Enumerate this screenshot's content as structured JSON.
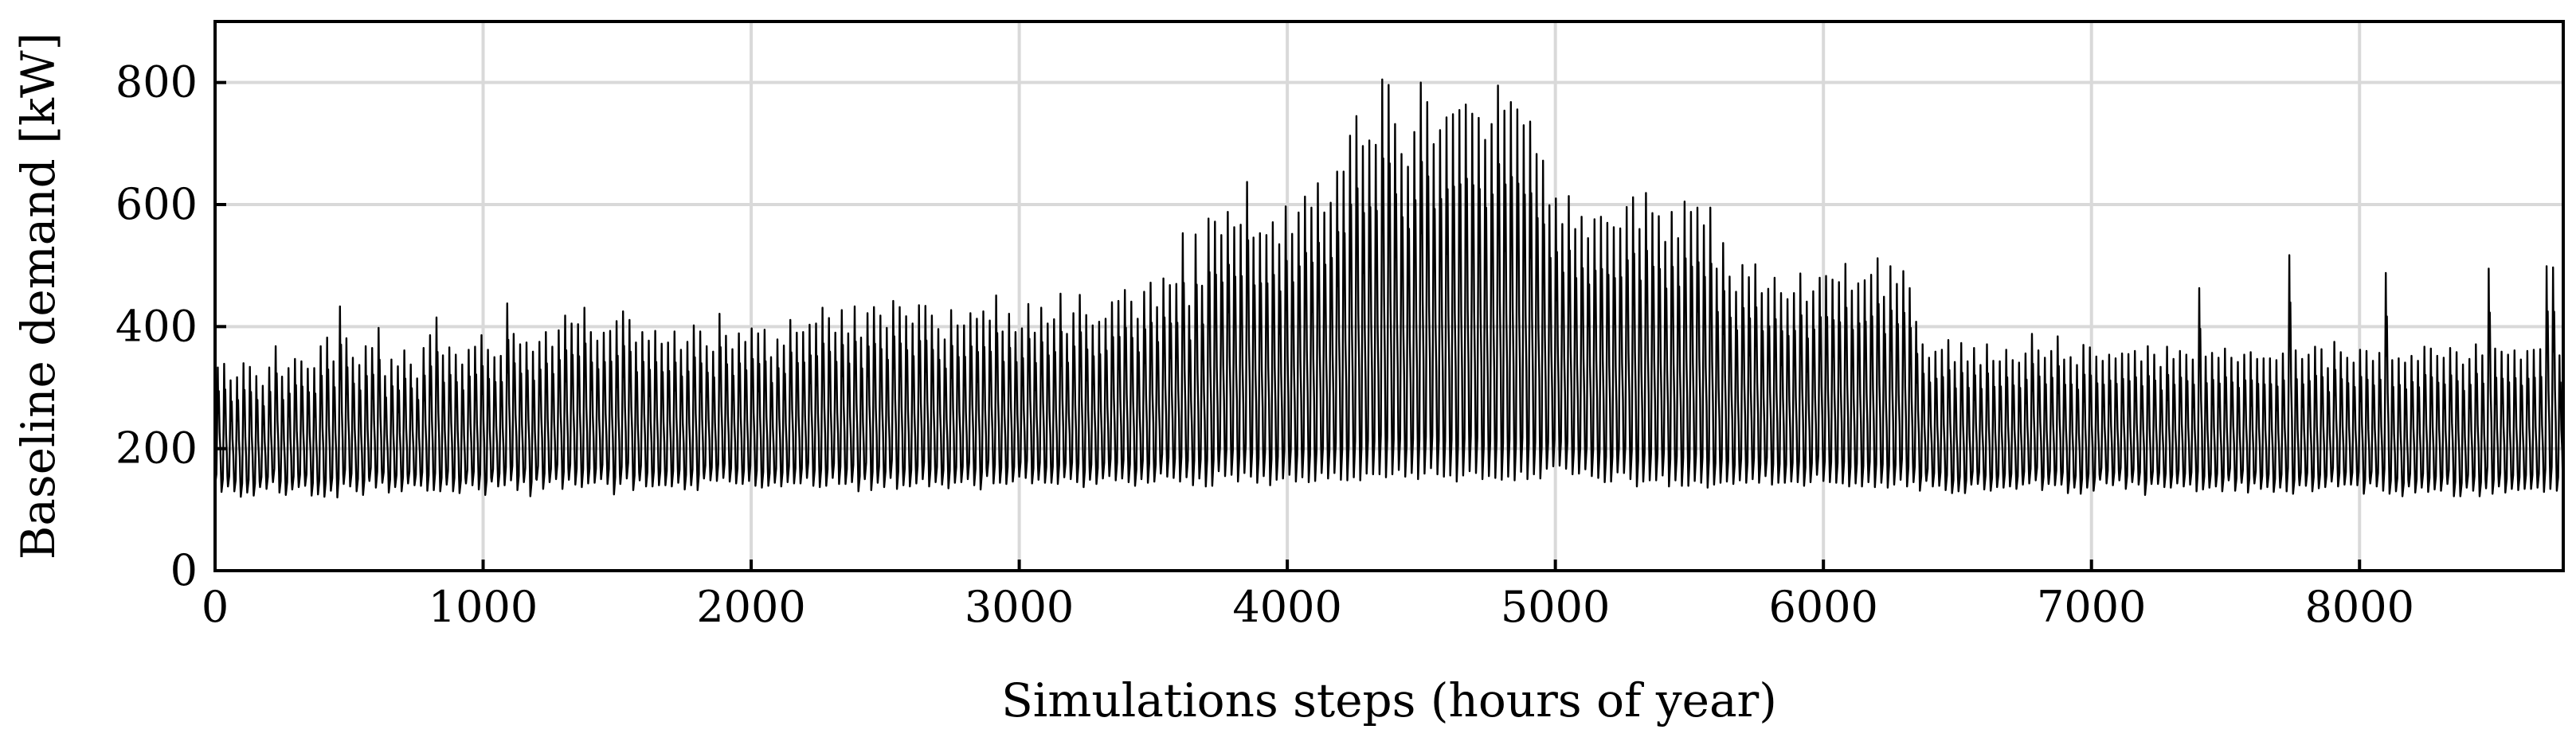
{
  "chart_data": {
    "type": "line",
    "xlabel": "Simulations steps (hours of year)",
    "ylabel": "Baseline demand [kW]",
    "xlim": [
      0,
      8760
    ],
    "ylim": [
      0,
      900
    ],
    "xticks": [
      0,
      1000,
      2000,
      3000,
      4000,
      5000,
      6000,
      7000,
      8000
    ],
    "yticks": [
      0,
      200,
      400,
      600,
      800
    ],
    "grid": true,
    "legend": "none",
    "series": [
      {
        "color": "#000000",
        "hour_step": 24,
        "daily_min": [
          139,
          129,
          138,
          130,
          121,
          128,
          123,
          137,
          134,
          145,
          128,
          124,
          133,
          137,
          139,
          123,
          125,
          121,
          131,
          120,
          142,
          138,
          130,
          124,
          147,
          136,
          144,
          128,
          137,
          130,
          143,
          140,
          139,
          131,
          132,
          130,
          141,
          130,
          127,
          143,
          140,
          133,
          124,
          146,
          138,
          140,
          148,
          132,
          145,
          122,
          149,
          134,
          145,
          150,
          134,
          149,
          141,
          137,
          143,
          144,
          150,
          142,
          125,
          142,
          151,
          132,
          148,
          138,
          138,
          140,
          140,
          138,
          144,
          133,
          140,
          132,
          151,
          148,
          147,
          152,
          146,
          143,
          142,
          147,
          139,
          136,
          139,
          144,
          138,
          145,
          143,
          143,
          152,
          139,
          137,
          139,
          152,
          142,
          142,
          145,
          130,
          150,
          132,
          144,
          137,
          152,
          134,
          140,
          138,
          143,
          150,
          138,
          145,
          141,
          135,
          144,
          145,
          150,
          140,
          133,
          155,
          143,
          144,
          142,
          146,
          154,
          152,
          143,
          149,
          144,
          144,
          142,
          153,
          150,
          145,
          137,
          149,
          142,
          151,
          155,
          148,
          151,
          145,
          139,
          150,
          144,
          146,
          159,
          154,
          152,
          146,
          153,
          140,
          151,
          138,
          139,
          163,
          155,
          157,
          146,
          160,
          154,
          144,
          155,
          140,
          149,
          151,
          157,
          146,
          153,
          145,
          147,
          160,
          151,
          160,
          149,
          148,
          153,
          148,
          159,
          158,
          158,
          153,
          158,
          165,
          154,
          160,
          150,
          159,
          168,
          158,
          154,
          156,
          146,
          156,
          163,
          160,
          150,
          155,
          152,
          149,
          154,
          148,
          162,
          150,
          158,
          151,
          167,
          171,
          172,
          167,
          158,
          159,
          166,
          155,
          152,
          145,
          146,
          161,
          160,
          150,
          138,
          146,
          148,
          148,
          156,
          138,
          148,
          139,
          139,
          147,
          144,
          136,
          141,
          144,
          146,
          142,
          148,
          144,
          150,
          144,
          155,
          141,
          144,
          144,
          146,
          145,
          139,
          145,
          157,
          147,
          145,
          144,
          143,
          138,
          143,
          138,
          145,
          137,
          144,
          136,
          141,
          149,
          138,
          145,
          131,
          147,
          138,
          139,
          132,
          127,
          130,
          127,
          141,
          142,
          133,
          131,
          137,
          136,
          138,
          134,
          141,
          143,
          148,
          132,
          142,
          140,
          141,
          127,
          136,
          126,
          136,
          131,
          149,
          143,
          140,
          148,
          134,
          145,
          141,
          124,
          142,
          142,
          137,
          136,
          143,
          138,
          141,
          130,
          133,
          136,
          138,
          130,
          148,
          131,
          144,
          128,
          143,
          134,
          137,
          129,
          136,
          130,
          126,
          140,
          139,
          130,
          135,
          137,
          146,
          138,
          141,
          141,
          140,
          126,
          143,
          138,
          131,
          126,
          130,
          122,
          138,
          128,
          136,
          129,
          133,
          131,
          142,
          122,
          122,
          136,
          131,
          122,
          135,
          126,
          138,
          128,
          134,
          132,
          134,
          134,
          136,
          129,
          134,
          131,
          120,
          128,
          139,
          127,
          125,
          141,
          126,
          133,
          131,
          125,
          128,
          133,
          138,
          136,
          125,
          138
        ],
        "daily_max": [
          333,
          339,
          312,
          317,
          340,
          334,
          319,
          303,
          333,
          368,
          318,
          332,
          347,
          343,
          331,
          332,
          368,
          382,
          343,
          433,
          381,
          349,
          337,
          368,
          365,
          398,
          319,
          346,
          335,
          361,
          338,
          315,
          365,
          386,
          415,
          353,
          366,
          354,
          338,
          362,
          367,
          386,
          362,
          350,
          352,
          438,
          388,
          371,
          374,
          359,
          375,
          391,
          367,
          394,
          418,
          405,
          404,
          431,
          391,
          377,
          390,
          393,
          409,
          425,
          411,
          374,
          391,
          377,
          393,
          372,
          374,
          392,
          362,
          375,
          402,
          392,
          368,
          359,
          421,
          385,
          363,
          389,
          375,
          397,
          389,
          395,
          350,
          379,
          369,
          411,
          390,
          391,
          403,
          405,
          431,
          414,
          390,
          427,
          389,
          433,
          382,
          422,
          432,
          418,
          398,
          442,
          432,
          417,
          405,
          435,
          434,
          418,
          396,
          379,
          427,
          402,
          402,
          422,
          413,
          425,
          410,
          451,
          392,
          421,
          391,
          397,
          437,
          390,
          431,
          405,
          412,
          454,
          388,
          422,
          452,
          419,
          402,
          408,
          413,
          440,
          442,
          460,
          441,
          413,
          457,
          472,
          432,
          479,
          468,
          470,
          553,
          434,
          551,
          467,
          577,
          572,
          550,
          588,
          563,
          567,
          637,
          546,
          553,
          550,
          571,
          535,
          597,
          552,
          587,
          613,
          595,
          635,
          587,
          603,
          654,
          654,
          713,
          745,
          696,
          705,
          698,
          805,
          796,
          732,
          683,
          662,
          719,
          800,
          768,
          699,
          722,
          743,
          748,
          755,
          764,
          749,
          742,
          706,
          732,
          795,
          754,
          768,
          756,
          730,
          736,
          683,
          672,
          599,
          610,
          568,
          614,
          560,
          580,
          545,
          576,
          580,
          570,
          563,
          561,
          596,
          612,
          560,
          619,
          586,
          581,
          539,
          588,
          545,
          605,
          588,
          595,
          566,
          595,
          495,
          537,
          482,
          457,
          501,
          481,
          502,
          455,
          462,
          480,
          455,
          445,
          455,
          487,
          441,
          458,
          480,
          483,
          477,
          473,
          503,
          459,
          471,
          476,
          485,
          512,
          449,
          499,
          470,
          491,
          463,
          408,
          371,
          349,
          359,
          362,
          378,
          342,
          373,
          343,
          365,
          337,
          371,
          344,
          343,
          362,
          345,
          341,
          356,
          388,
          361,
          349,
          360,
          384,
          346,
          350,
          337,
          370,
          366,
          351,
          344,
          354,
          348,
          356,
          355,
          360,
          343,
          368,
          354,
          334,
          367,
          347,
          360,
          354,
          346,
          463,
          351,
          357,
          349,
          364,
          349,
          342,
          354,
          358,
          347,
          348,
          348,
          345,
          356,
          517,
          361,
          347,
          354,
          367,
          363,
          332,
          375,
          358,
          349,
          341,
          362,
          360,
          344,
          357,
          488,
          345,
          348,
          341,
          352,
          344,
          367,
          364,
          352,
          349,
          365,
          358,
          338,
          347,
          371,
          353,
          495,
          364,
          359,
          354,
          361,
          346,
          360,
          362,
          363,
          499,
          497,
          353,
          357,
          360,
          366
        ]
      }
    ]
  }
}
